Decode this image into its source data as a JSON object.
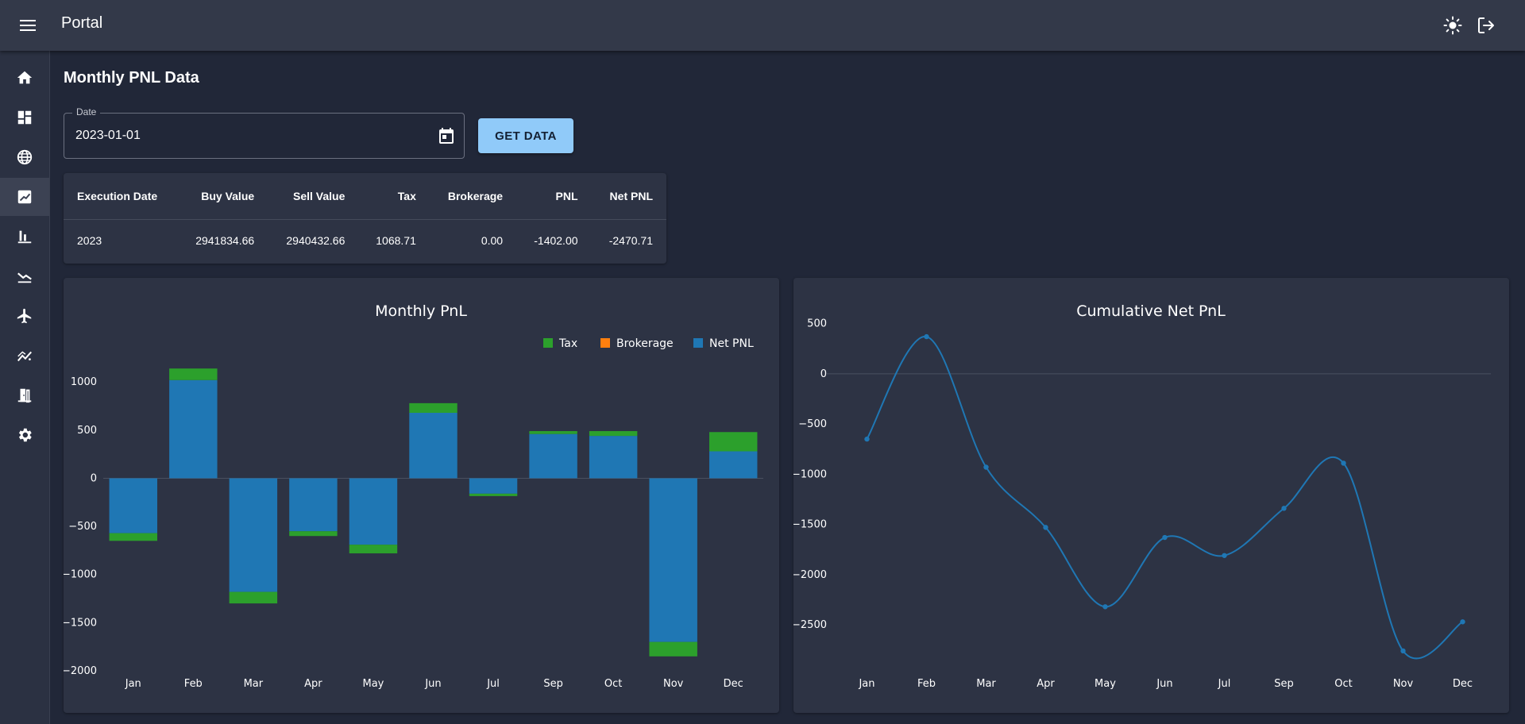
{
  "app": {
    "title": "Portal"
  },
  "header": {
    "theme_icon": "sun-icon",
    "logout_icon": "logout-icon",
    "menu_icon": "menu-icon"
  },
  "sidebar": {
    "items": [
      {
        "name": "home",
        "icon": "home-icon"
      },
      {
        "name": "dashboard",
        "icon": "dashboard-icon"
      },
      {
        "name": "globe",
        "icon": "globe-icon"
      },
      {
        "name": "pnl",
        "icon": "pnl-icon",
        "active": true
      },
      {
        "name": "bar-chart",
        "icon": "bar-chart-icon"
      },
      {
        "name": "trend-down",
        "icon": "trend-down-icon"
      },
      {
        "name": "flight",
        "icon": "flight-icon"
      },
      {
        "name": "analytics",
        "icon": "analytics-icon"
      },
      {
        "name": "exit-door",
        "icon": "door-icon"
      },
      {
        "name": "settings",
        "icon": "gear-icon"
      }
    ]
  },
  "page": {
    "title": "Monthly PNL Data",
    "date_label": "Date",
    "date_value": "2023-01-01",
    "get_button": "GET DATA"
  },
  "table": {
    "headers": [
      "Execution Date",
      "Buy Value",
      "Sell Value",
      "Tax",
      "Brokerage",
      "PNL",
      "Net PNL"
    ],
    "rows": [
      [
        "2023",
        "2941834.66",
        "2940432.66",
        "1068.71",
        "0.00",
        "-1402.00",
        "-2470.71"
      ]
    ]
  },
  "chart_data": [
    {
      "type": "bar",
      "title": "Monthly PnL",
      "stacked": true,
      "categories": [
        "Jan",
        "Feb",
        "Mar",
        "Apr",
        "May",
        "Jun",
        "Jul",
        "Sep",
        "Oct",
        "Nov",
        "Dec"
      ],
      "series": [
        {
          "name": "Tax",
          "color": "#2ca02c",
          "values": [
            80,
            120,
            120,
            50,
            90,
            100,
            25,
            30,
            50,
            150,
            200
          ]
        },
        {
          "name": "Brokerage",
          "color": "#ff7f0e",
          "values": [
            0,
            0,
            0,
            0,
            0,
            0,
            0,
            0,
            0,
            0,
            0
          ]
        },
        {
          "name": "Net PNL",
          "color": "#1f77b4",
          "values": [
            -570,
            1020,
            -1180,
            -550,
            -690,
            680,
            -160,
            460,
            440,
            -1700,
            280
          ]
        }
      ],
      "y_ticks": [
        "1000",
        "500",
        "0",
        "−500",
        "−1000",
        "−1500",
        "−2000"
      ],
      "ylim": [
        -2000,
        1150
      ],
      "legend": "top-right"
    },
    {
      "type": "line",
      "title": "Cumulative Net PnL",
      "categories": [
        "Jan",
        "Feb",
        "Mar",
        "Apr",
        "May",
        "Jun",
        "Jul",
        "Sep",
        "Oct",
        "Nov",
        "Dec"
      ],
      "series": [
        {
          "name": "Cumulative Net PnL",
          "color": "#1f77b4",
          "values": [
            -650,
            370,
            -930,
            -1530,
            -2320,
            -1630,
            -1810,
            -1340,
            -890,
            -2760,
            -2470
          ]
        }
      ],
      "y_ticks": [
        "500",
        "0",
        "−500",
        "−1000",
        "−1500",
        "−2000",
        "−2500"
      ],
      "ylim": [
        -2800,
        600
      ]
    }
  ]
}
